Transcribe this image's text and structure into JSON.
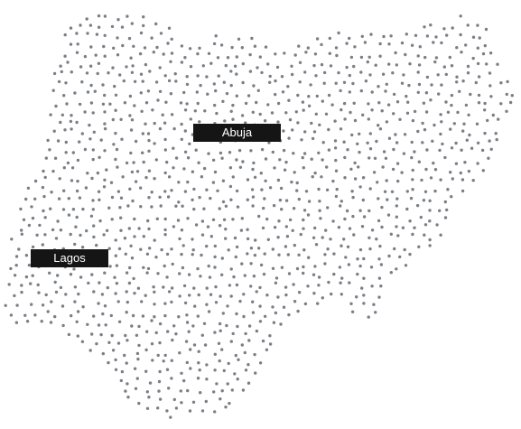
{
  "map": {
    "style": "dotted-country-outline",
    "dot_color": "#7b7f85",
    "background_color": "#ffffff",
    "label_background": "#151515",
    "label_text_color": "#ffffff"
  },
  "cities": [
    {
      "name": "Abuja"
    },
    {
      "name": "Lagos"
    }
  ]
}
